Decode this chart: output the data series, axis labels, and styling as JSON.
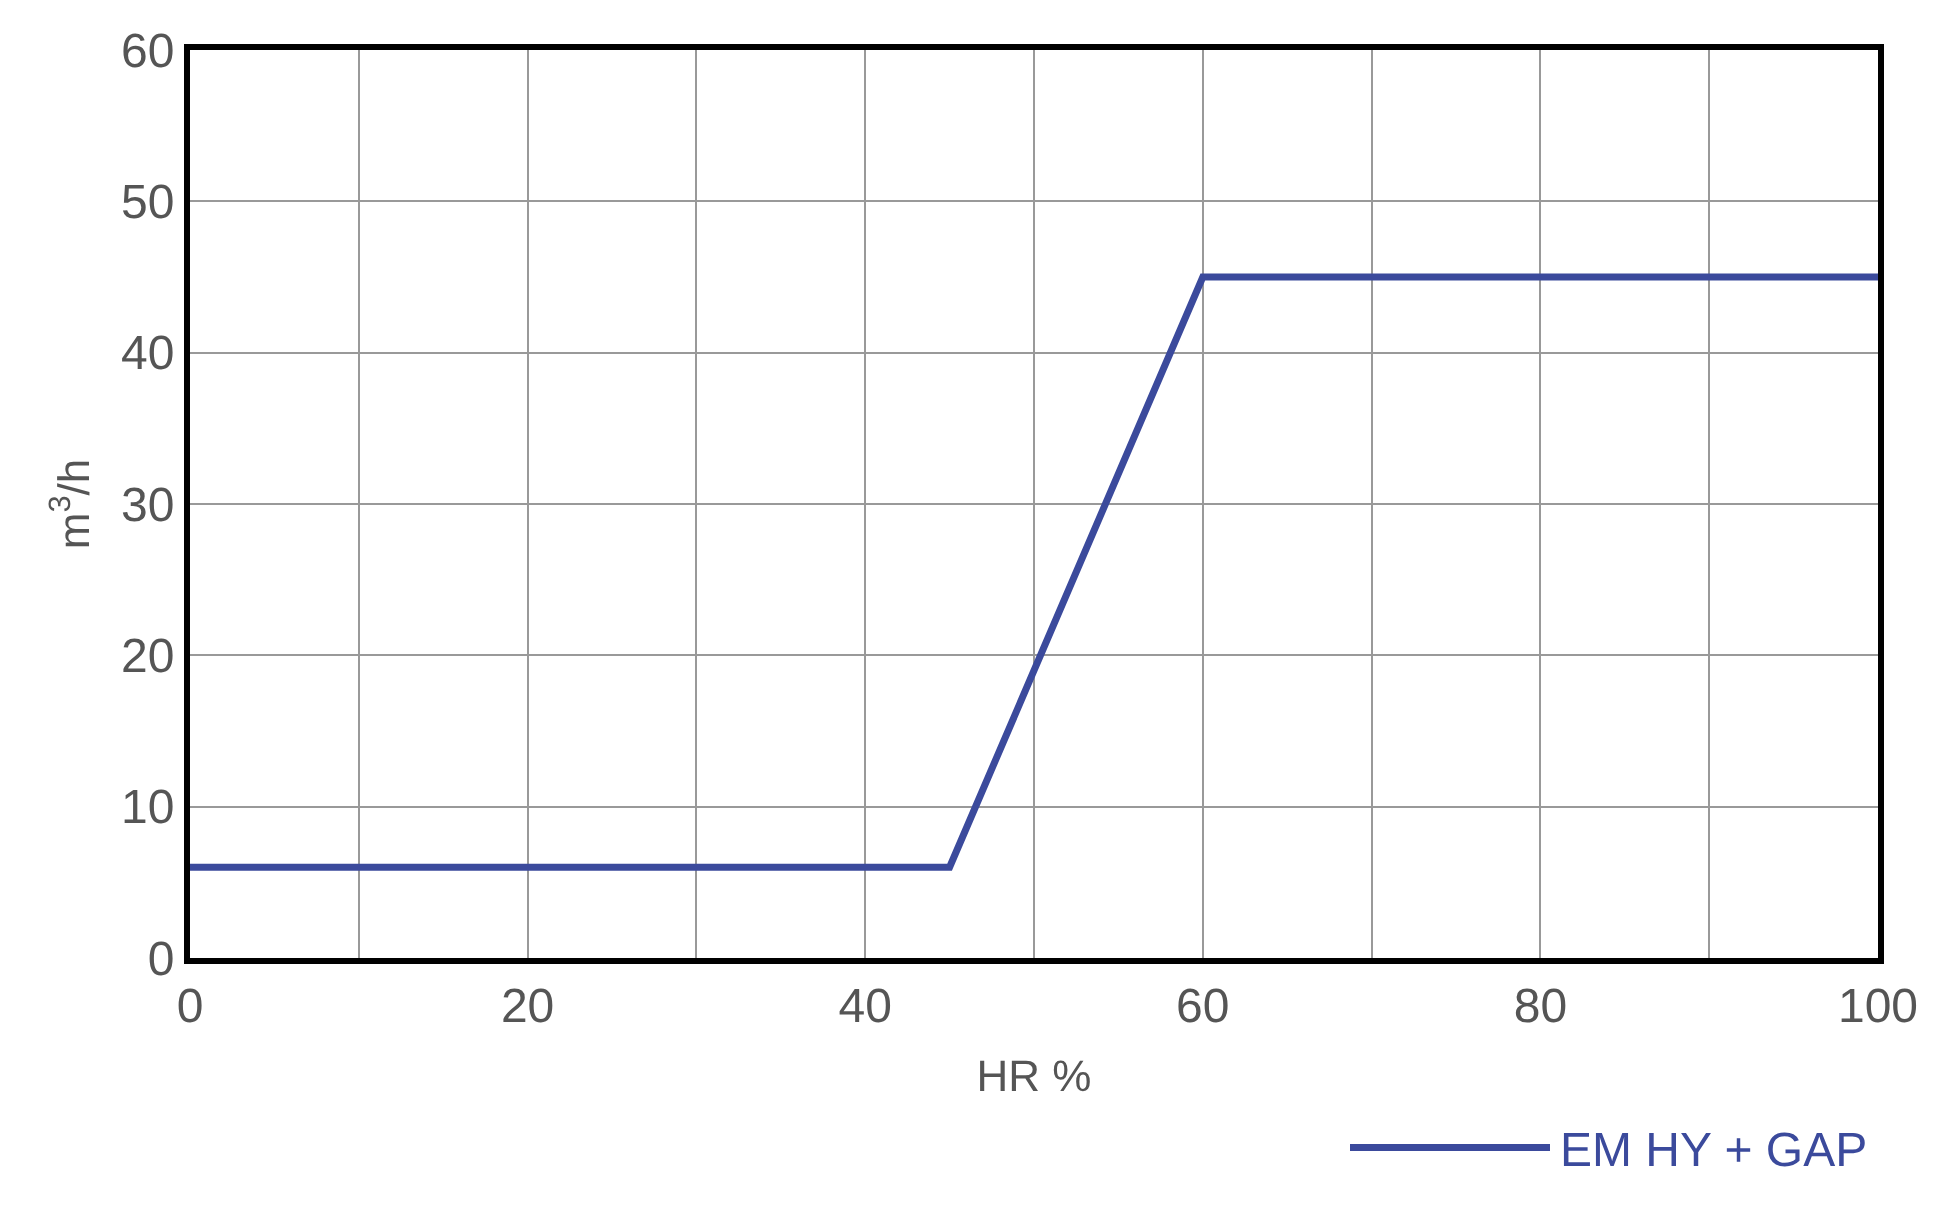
{
  "chart_data": {
    "type": "line",
    "xlabel": "HR %",
    "ylabel": "m$^{3}$/h",
    "x": [
      0,
      45,
      60,
      100
    ],
    "series": [
      {
        "name": "EM HY + GAP",
        "color": "#3b4a9c",
        "values": [
          6,
          6,
          45,
          45
        ]
      }
    ],
    "xlim": [
      0,
      100
    ],
    "ylim": [
      0,
      60
    ],
    "xticks": [
      0,
      {
        "value": 10,
        "label": null
      },
      20,
      {
        "value": 30,
        "label": null
      },
      40,
      {
        "value": 50,
        "label": null
      },
      60,
      {
        "value": 70,
        "label": null
      },
      80,
      {
        "value": 90,
        "label": null
      },
      100
    ],
    "yticks": [
      0,
      10,
      20,
      30,
      40,
      50,
      60
    ],
    "grid": true,
    "legend": "bottom right",
    "marker": "none",
    "line_style": "solid"
  }
}
